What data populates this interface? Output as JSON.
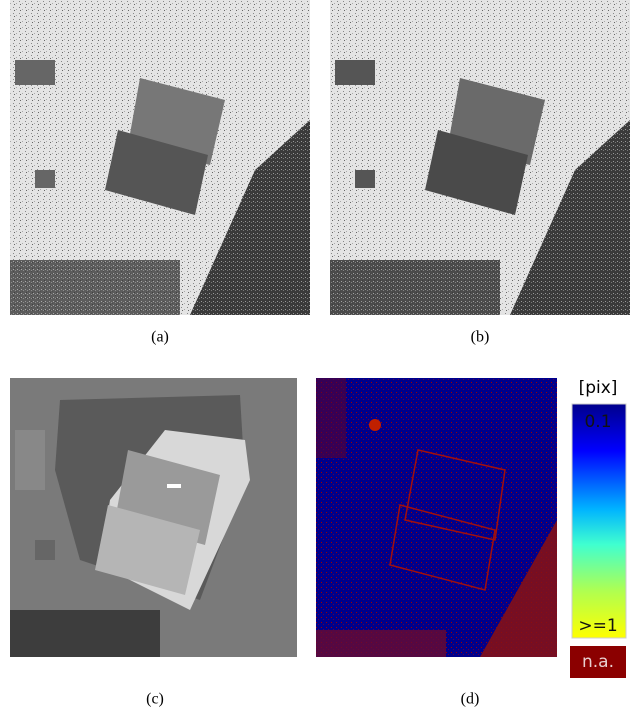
{
  "figure": {
    "panels": [
      {
        "label": "(a)"
      },
      {
        "label": "(b)"
      },
      {
        "label": "(c)"
      },
      {
        "label": "(d)"
      }
    ],
    "colorbar": {
      "unit": "[pix]",
      "top_label": "0.1",
      "bottom_label": ">=1",
      "na_label": "n.a."
    }
  }
}
